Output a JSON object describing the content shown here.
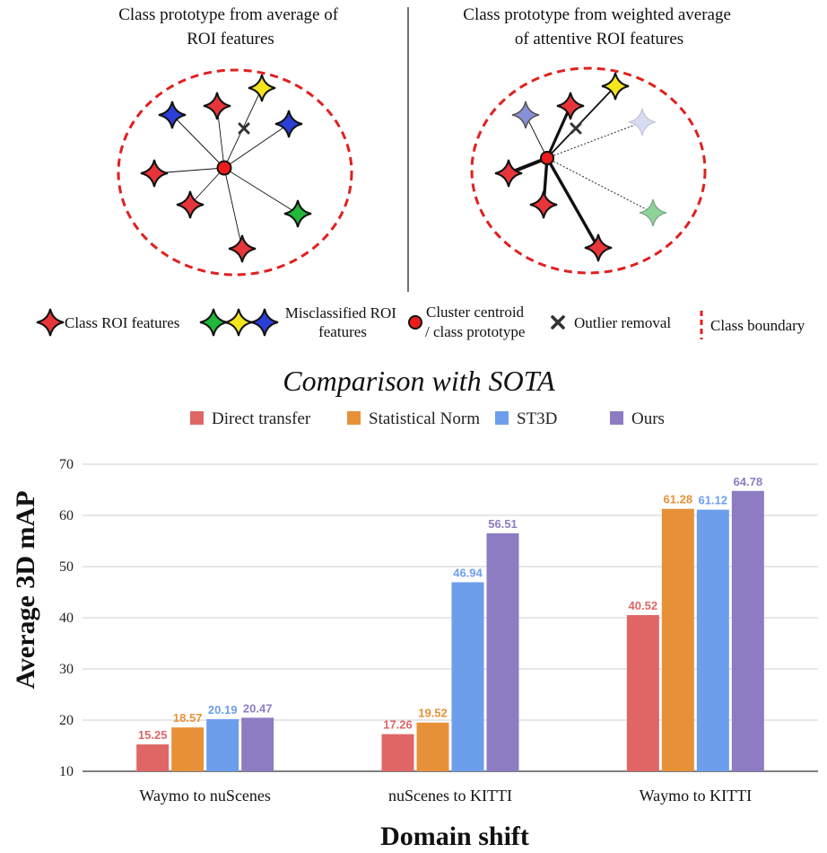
{
  "diagram": {
    "left_title": [
      "Class prototype from average of",
      "ROI features"
    ],
    "right_title": [
      "Class prototype from weighted average",
      "of attentive ROI features"
    ],
    "legend": {
      "class_roi": "Class ROI features",
      "misclassified": [
        "Misclassified ROI",
        "features"
      ],
      "centroid": [
        "Cluster centroid",
        "/ class prototype"
      ],
      "outlier": "Outlier removal",
      "boundary": "Class boundary"
    },
    "colors": {
      "red": "#e8353a",
      "blue": "#2b3fd6",
      "yellow": "#f4e51e",
      "green": "#1fb83a",
      "boundary": "#e02020"
    }
  },
  "chart_data": {
    "type": "bar",
    "title": "Comparison with SOTA",
    "xlabel": "Domain shift",
    "ylabel": "Average 3D mAP",
    "categories": [
      "Waymo to nuScenes",
      "nuScenes to KITTI",
      "Waymo to KITTI"
    ],
    "ylim": [
      10,
      70
    ],
    "yticks": [
      10,
      20,
      30,
      40,
      50,
      60,
      70
    ],
    "grid": true,
    "legend_position": "top",
    "series": [
      {
        "name": "Direct transfer",
        "color": "#e06666",
        "values": [
          15.25,
          17.26,
          40.52
        ]
      },
      {
        "name": "Statistical Norm",
        "color": "#e69138",
        "values": [
          18.57,
          19.52,
          61.28
        ]
      },
      {
        "name": "ST3D",
        "color": "#6d9eeb",
        "values": [
          20.19,
          46.94,
          61.12
        ]
      },
      {
        "name": "Ours",
        "color": "#8e7cc3",
        "values": [
          20.47,
          56.51,
          64.78
        ]
      }
    ]
  }
}
